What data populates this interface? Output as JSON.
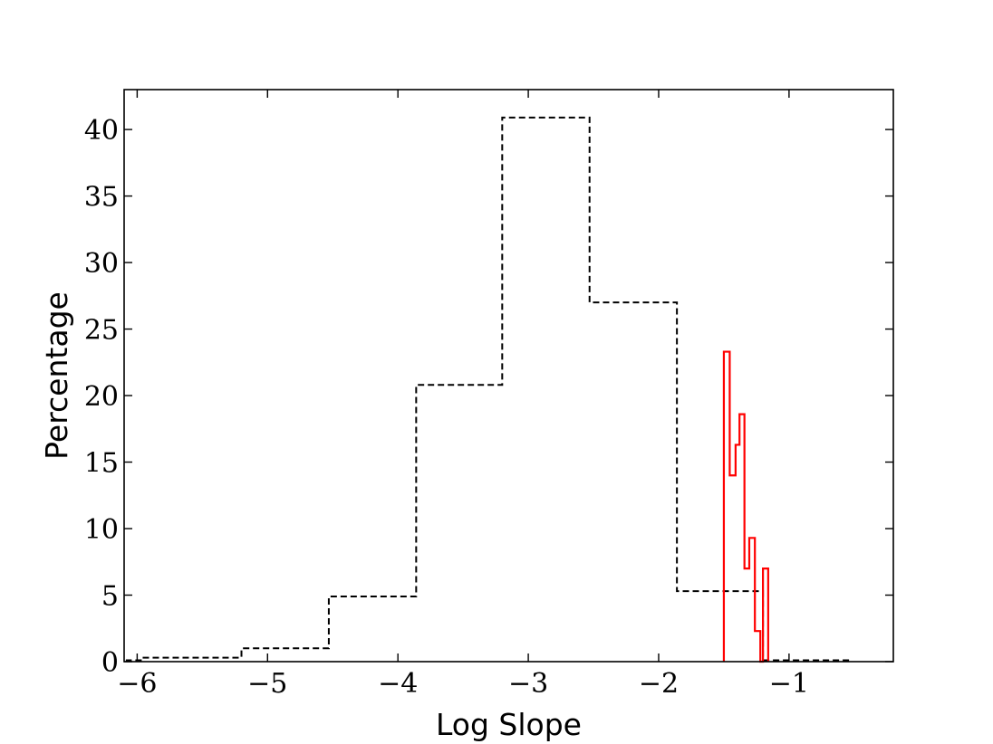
{
  "chart_data": {
    "type": "histogram",
    "title": "",
    "xlabel": "Log Slope",
    "ylabel": "Percentage",
    "xlim": [
      -6.1,
      -0.2
    ],
    "ylim": [
      0,
      43
    ],
    "xticks": [
      -6,
      -5,
      -4,
      -3,
      -2,
      -1
    ],
    "xtick_labels": [
      "−6",
      "−5",
      "−4",
      "−3",
      "−2",
      "−1"
    ],
    "yticks": [
      0,
      5,
      10,
      15,
      20,
      25,
      30,
      35,
      40
    ],
    "ytick_labels": [
      "0",
      "5",
      "10",
      "15",
      "20",
      "25",
      "30",
      "35",
      "40"
    ],
    "grid": false,
    "legend": null,
    "series": [
      {
        "style": "dashed",
        "color": "#000000",
        "edges": [
          -6.08,
          -5.96,
          -5.2,
          -4.53,
          -3.86,
          -3.2,
          -2.53,
          -1.86,
          -1.2,
          -0.53
        ],
        "values": [
          0.1,
          0.3,
          1.0,
          4.9,
          20.8,
          40.9,
          27.0,
          5.3,
          0.1
        ]
      },
      {
        "style": "solid",
        "color": "#ff0000",
        "edges": [
          -1.5,
          -1.455,
          -1.41,
          -1.38,
          -1.342,
          -1.305,
          -1.262,
          -1.22,
          -1.2,
          -1.16
        ],
        "values": [
          23.3,
          14.0,
          16.3,
          18.6,
          7.0,
          9.3,
          2.3,
          0.0,
          7.0
        ]
      }
    ]
  }
}
